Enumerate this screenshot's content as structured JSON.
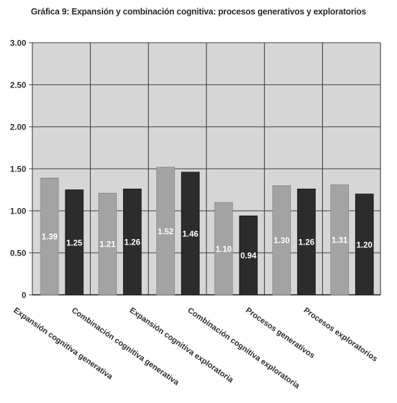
{
  "chart_data": {
    "type": "bar",
    "title": "Gráfica 9: Expansión y combinación cognitiva: procesos generativos y exploratorios",
    "categories": [
      "Expansión cognitiva generativa",
      "Combinación cognitiva generativa",
      "Expansión cognitiva exploratoria",
      "Combinación cognitiva exploratoria",
      "Procesos generativos",
      "Procesos exploratorios"
    ],
    "series": [
      {
        "values": [
          1.39,
          1.21,
          1.52,
          1.1,
          1.3,
          1.31
        ],
        "color": "#a3a3a3"
      },
      {
        "values": [
          1.25,
          1.26,
          1.46,
          0.94,
          1.26,
          1.2
        ],
        "color": "#2c2c2c"
      }
    ],
    "data_labels": [
      [
        "1.39",
        "1.21",
        "1.52",
        "1.10",
        "1.30",
        "1.31"
      ],
      [
        "1.25",
        "1.26",
        "1.46",
        "0.94",
        "1.26",
        "1.20"
      ]
    ],
    "yticks": [
      0,
      0.5,
      1.0,
      1.5,
      2.0,
      2.5,
      3.0
    ],
    "ytick_labels": [
      "0",
      "0.50",
      "1.00",
      "1.50",
      "2.00",
      "2.50",
      "3.00"
    ],
    "ylim": [
      0,
      3.0
    ],
    "xlabel": "",
    "ylabel": "",
    "grid": true,
    "legend": "none",
    "plot_background": "#d6d6d6"
  }
}
